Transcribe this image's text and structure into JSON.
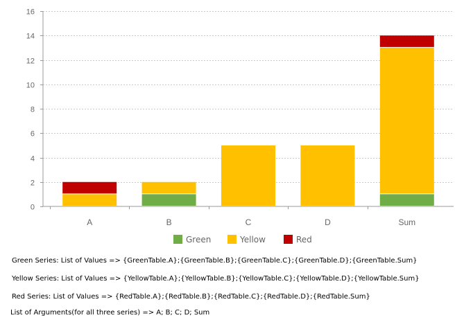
{
  "chart_data": {
    "type": "bar",
    "stacked": true,
    "categories": [
      "A",
      "B",
      "C",
      "D",
      "Sum"
    ],
    "series": [
      {
        "name": "Green",
        "color": "#70ad47",
        "values": [
          0,
          1,
          0,
          0,
          1
        ]
      },
      {
        "name": "Yellow",
        "color": "#ffc000",
        "values": [
          1,
          1,
          5,
          5,
          12
        ]
      },
      {
        "name": "Red",
        "color": "#c00000",
        "values": [
          1,
          0,
          0,
          0,
          1
        ]
      }
    ],
    "ylim": [
      0,
      16
    ],
    "yticks": [
      0,
      2,
      4,
      6,
      8,
      10,
      12,
      14,
      16
    ],
    "grid": true,
    "legend_position": "bottom"
  },
  "notes": [
    "Green Series: List of Values => {GreenTable.A};{GreenTable.B};{GreenTable.C};{GreenTable.D};{GreenTable.Sum}",
    "Yellow Series: List of Values => {YellowTable.A};{YellowTable.B};{YellowTable.C};{YellowTable.D};{YellowTable.Sum}",
    "Red Series: List of Values => {RedTable.A};{RedTable.B};{RedTable.C};{RedTable.D};{RedTable.Sum}",
    " List of Arguments(for all three series) => A; B; C; D; Sum"
  ]
}
